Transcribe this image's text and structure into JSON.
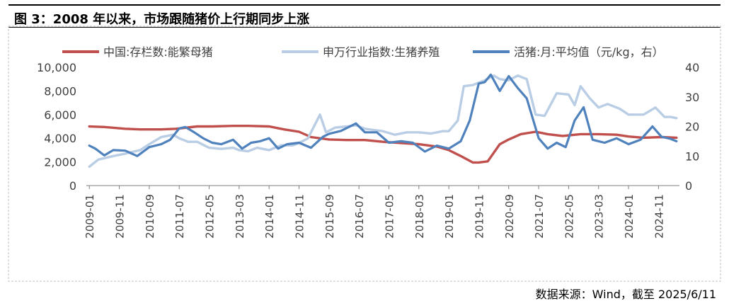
{
  "figure": {
    "title": "图 3：2008 年以来，市场跟随猪价上行期同步上涨",
    "source": "数据来源：Wind，截至 2025/6/11"
  },
  "chart_data": {
    "type": "line",
    "legend_position": "top",
    "grid": false,
    "x_ticks": [
      "2009-01",
      "2009-11",
      "2010-09",
      "2011-07",
      "2012-05",
      "2013-03",
      "2014-01",
      "2014-11",
      "2015-09",
      "2016-07",
      "2017-05",
      "2018-03",
      "2019-01",
      "2019-11",
      "2020-09",
      "2021-07",
      "2022-05",
      "2023-03",
      "2024-01",
      "2024-11"
    ],
    "x_range": [
      "2008-12",
      "2025-06"
    ],
    "y_left": {
      "min": 0,
      "max": 10000,
      "ticks": [
        0,
        2000,
        4000,
        6000,
        8000,
        10000
      ],
      "tick_labels": [
        "0",
        "2,000",
        "4,000",
        "6,000",
        "8,000",
        "10,000"
      ]
    },
    "y_right": {
      "min": 0,
      "max": 40,
      "ticks": [
        0,
        10,
        20,
        30,
        40
      ],
      "tick_labels": [
        "0",
        "10",
        "20",
        "30",
        "40"
      ]
    },
    "series": [
      {
        "name": "中国:存栏数:能繁母猪",
        "axis": "left",
        "color": "#c0504d",
        "points": [
          [
            "2009-01",
            5000
          ],
          [
            "2009-06",
            4950
          ],
          [
            "2010-01",
            4800
          ],
          [
            "2010-06",
            4750
          ],
          [
            "2011-01",
            4750
          ],
          [
            "2011-06",
            4800
          ],
          [
            "2012-01",
            5000
          ],
          [
            "2012-06",
            5000
          ],
          [
            "2013-01",
            5050
          ],
          [
            "2013-06",
            5050
          ],
          [
            "2014-01",
            5000
          ],
          [
            "2014-06",
            4750
          ],
          [
            "2014-11",
            4550
          ],
          [
            "2015-03",
            4100
          ],
          [
            "2015-09",
            3900
          ],
          [
            "2016-03",
            3850
          ],
          [
            "2016-09",
            3850
          ],
          [
            "2017-03",
            3700
          ],
          [
            "2017-09",
            3600
          ],
          [
            "2018-03",
            3500
          ],
          [
            "2018-09",
            3300
          ],
          [
            "2019-01",
            3000
          ],
          [
            "2019-05",
            2500
          ],
          [
            "2019-09",
            1950
          ],
          [
            "2019-11",
            1950
          ],
          [
            "2020-02",
            2050
          ],
          [
            "2020-06",
            3500
          ],
          [
            "2020-09",
            3900
          ],
          [
            "2021-01",
            4350
          ],
          [
            "2021-06",
            4550
          ],
          [
            "2021-10",
            4350
          ],
          [
            "2022-03",
            4200
          ],
          [
            "2022-09",
            4350
          ],
          [
            "2023-03",
            4350
          ],
          [
            "2023-09",
            4300
          ],
          [
            "2024-01",
            4150
          ],
          [
            "2024-06",
            4050
          ],
          [
            "2024-12",
            4100
          ],
          [
            "2025-05",
            4050
          ]
        ]
      },
      {
        "name": "申万行业指数:生猪养殖",
        "axis": "left",
        "color": "#b9cde5",
        "points": [
          [
            "2009-01",
            1600
          ],
          [
            "2009-04",
            2200
          ],
          [
            "2009-09",
            2500
          ],
          [
            "2010-01",
            2700
          ],
          [
            "2010-06",
            3000
          ],
          [
            "2010-09",
            3500
          ],
          [
            "2011-01",
            4100
          ],
          [
            "2011-05",
            4300
          ],
          [
            "2011-07",
            4000
          ],
          [
            "2011-10",
            3700
          ],
          [
            "2012-01",
            3700
          ],
          [
            "2012-05",
            3200
          ],
          [
            "2012-09",
            3100
          ],
          [
            "2013-01",
            3200
          ],
          [
            "2013-03",
            3000
          ],
          [
            "2013-06",
            2900
          ],
          [
            "2013-09",
            3200
          ],
          [
            "2014-01",
            3000
          ],
          [
            "2014-05",
            3400
          ],
          [
            "2014-09",
            3400
          ],
          [
            "2014-11",
            3600
          ],
          [
            "2015-02",
            4000
          ],
          [
            "2015-05",
            5500
          ],
          [
            "2015-06",
            6000
          ],
          [
            "2015-08",
            4500
          ],
          [
            "2015-11",
            4900
          ],
          [
            "2016-03",
            5000
          ],
          [
            "2016-06",
            5100
          ],
          [
            "2016-09",
            4800
          ],
          [
            "2016-12",
            4700
          ],
          [
            "2017-03",
            4600
          ],
          [
            "2017-07",
            4300
          ],
          [
            "2017-11",
            4500
          ],
          [
            "2018-03",
            4500
          ],
          [
            "2018-07",
            4400
          ],
          [
            "2018-11",
            4600
          ],
          [
            "2019-01",
            4600
          ],
          [
            "2019-04",
            5500
          ],
          [
            "2019-06",
            8400
          ],
          [
            "2019-09",
            8500
          ],
          [
            "2019-11",
            8700
          ],
          [
            "2020-01",
            8900
          ],
          [
            "2020-04",
            9300
          ],
          [
            "2020-06",
            9000
          ],
          [
            "2020-09",
            8900
          ],
          [
            "2020-12",
            9300
          ],
          [
            "2021-03",
            9000
          ],
          [
            "2021-06",
            6000
          ],
          [
            "2021-09",
            5900
          ],
          [
            "2022-01",
            7800
          ],
          [
            "2022-05",
            7700
          ],
          [
            "2022-07",
            6800
          ],
          [
            "2022-09",
            8400
          ],
          [
            "2022-12",
            7400
          ],
          [
            "2023-03",
            6600
          ],
          [
            "2023-06",
            6900
          ],
          [
            "2023-10",
            6500
          ],
          [
            "2024-01",
            6000
          ],
          [
            "2024-06",
            6000
          ],
          [
            "2024-10",
            6600
          ],
          [
            "2025-01",
            5800
          ],
          [
            "2025-03",
            5800
          ],
          [
            "2025-05",
            5700
          ]
        ]
      },
      {
        "name": "活猪:月:平均值（元/kg，右）",
        "axis": "right",
        "color": "#4f81bd",
        "points": [
          [
            "2009-01",
            13.5
          ],
          [
            "2009-03",
            12.5
          ],
          [
            "2009-06",
            10.2
          ],
          [
            "2009-09",
            12.0
          ],
          [
            "2010-01",
            11.8
          ],
          [
            "2010-05",
            10.0
          ],
          [
            "2010-09",
            13.0
          ],
          [
            "2011-01",
            14.0
          ],
          [
            "2011-04",
            15.5
          ],
          [
            "2011-07",
            19.3
          ],
          [
            "2011-09",
            19.8
          ],
          [
            "2011-12",
            18.0
          ],
          [
            "2012-03",
            16.0
          ],
          [
            "2012-06",
            14.5
          ],
          [
            "2012-09",
            14.0
          ],
          [
            "2013-01",
            15.5
          ],
          [
            "2013-04",
            12.5
          ],
          [
            "2013-07",
            14.5
          ],
          [
            "2013-10",
            15.0
          ],
          [
            "2014-01",
            16.0
          ],
          [
            "2014-04",
            12.5
          ],
          [
            "2014-07",
            14.0
          ],
          [
            "2014-11",
            14.5
          ],
          [
            "2015-03",
            12.8
          ],
          [
            "2015-07",
            16.5
          ],
          [
            "2015-09",
            17.5
          ],
          [
            "2016-01",
            18.5
          ],
          [
            "2016-06",
            21.0
          ],
          [
            "2016-09",
            18.0
          ],
          [
            "2017-01",
            18.0
          ],
          [
            "2017-05",
            14.5
          ],
          [
            "2017-09",
            15.0
          ],
          [
            "2018-01",
            14.5
          ],
          [
            "2018-05",
            11.5
          ],
          [
            "2018-09",
            13.5
          ],
          [
            "2019-01",
            12.5
          ],
          [
            "2019-05",
            15.0
          ],
          [
            "2019-08",
            22.0
          ],
          [
            "2019-11",
            34.5
          ],
          [
            "2020-01",
            35.0
          ],
          [
            "2020-03",
            37.5
          ],
          [
            "2020-06",
            32.0
          ],
          [
            "2020-09",
            37.0
          ],
          [
            "2020-12",
            33.0
          ],
          [
            "2021-03",
            29.5
          ],
          [
            "2021-07",
            16.0
          ],
          [
            "2021-10",
            12.5
          ],
          [
            "2022-01",
            14.5
          ],
          [
            "2022-04",
            13.0
          ],
          [
            "2022-07",
            22.0
          ],
          [
            "2022-10",
            26.5
          ],
          [
            "2023-01",
            15.5
          ],
          [
            "2023-05",
            14.5
          ],
          [
            "2023-09",
            16.0
          ],
          [
            "2024-01",
            14.0
          ],
          [
            "2024-05",
            15.5
          ],
          [
            "2024-09",
            20.0
          ],
          [
            "2024-12",
            16.5
          ],
          [
            "2025-03",
            15.8
          ],
          [
            "2025-05",
            15.0
          ]
        ]
      }
    ]
  }
}
